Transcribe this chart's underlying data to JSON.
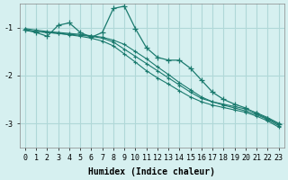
{
  "xlabel": "Humidex (Indice chaleur)",
  "ylabel": "",
  "background_color": "#d6f0f0",
  "grid_color": "#b0d8d8",
  "line_color": "#1a7a6e",
  "xlim": [
    -0.5,
    23.5
  ],
  "ylim": [
    -3.5,
    -0.5
  ],
  "yticks": [
    -3,
    -2,
    -1
  ],
  "xticks": [
    0,
    1,
    2,
    3,
    4,
    5,
    6,
    7,
    8,
    9,
    10,
    11,
    12,
    13,
    14,
    15,
    16,
    17,
    18,
    19,
    20,
    21,
    22,
    23
  ],
  "line1_x": [
    0,
    1,
    2,
    3,
    4,
    5,
    6,
    7,
    8,
    9,
    10,
    11,
    12,
    13,
    14,
    15,
    16,
    17,
    18,
    19,
    20,
    21,
    22,
    23
  ],
  "line1_y": [
    -1.05,
    -1.08,
    -1.1,
    -1.12,
    -1.14,
    -1.16,
    -1.18,
    -1.22,
    -1.3,
    -1.45,
    -1.6,
    -1.75,
    -1.9,
    -2.05,
    -2.2,
    -2.35,
    -2.48,
    -2.55,
    -2.6,
    -2.65,
    -2.7,
    -2.78,
    -2.88,
    -3.0
  ],
  "line2_x": [
    0,
    1,
    2,
    3,
    4,
    5,
    6,
    7,
    8,
    9,
    10,
    11,
    12,
    13,
    14,
    15,
    16,
    17,
    18,
    19,
    20,
    21,
    22,
    23
  ],
  "line2_y": [
    -1.05,
    -1.08,
    -1.1,
    -1.12,
    -1.15,
    -1.18,
    -1.22,
    -1.28,
    -1.38,
    -1.55,
    -1.72,
    -1.9,
    -2.05,
    -2.18,
    -2.32,
    -2.45,
    -2.55,
    -2.62,
    -2.67,
    -2.72,
    -2.77,
    -2.85,
    -2.95,
    -3.08
  ],
  "line3_x": [
    0,
    1,
    2,
    3,
    4,
    5,
    6,
    7,
    8,
    9,
    10,
    11,
    12,
    13,
    14,
    15,
    16,
    17,
    18,
    19,
    20,
    21,
    22,
    23
  ],
  "line3_y": [
    -1.05,
    -1.1,
    -1.18,
    -0.95,
    -0.9,
    -1.1,
    -1.2,
    -1.1,
    -0.6,
    -0.55,
    -1.02,
    -1.42,
    -1.62,
    -1.68,
    -1.68,
    -1.85,
    -2.1,
    -2.35,
    -2.5,
    -2.6,
    -2.68,
    -2.8,
    -2.9,
    -3.02
  ],
  "line4_x": [
    0,
    1,
    2,
    3,
    4,
    5,
    6,
    7,
    8,
    9,
    10,
    11,
    12,
    13,
    14,
    15,
    16,
    17,
    18,
    19,
    20,
    21,
    22,
    23
  ],
  "line4_y": [
    -1.02,
    -1.05,
    -1.08,
    -1.1,
    -1.12,
    -1.14,
    -1.17,
    -1.2,
    -1.26,
    -1.35,
    -1.5,
    -1.65,
    -1.82,
    -1.98,
    -2.15,
    -2.3,
    -2.45,
    -2.55,
    -2.62,
    -2.68,
    -2.74,
    -2.82,
    -2.92,
    -3.05
  ]
}
